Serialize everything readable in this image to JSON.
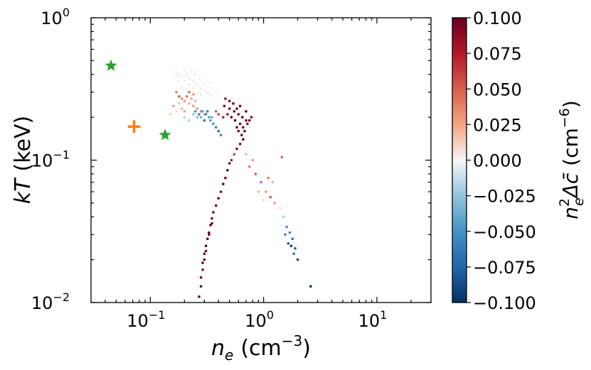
{
  "chart_data": {
    "type": "scatter",
    "xscale": "log",
    "yscale": "log",
    "xlim": [
      0.03,
      30
    ],
    "ylim": [
      0.01,
      1
    ],
    "xlabel": {
      "main": "n",
      "sub": "e",
      "unit": "(cm",
      "exp": "−3",
      "close": ")"
    },
    "ylabel": {
      "main": "kT",
      "unit": "(keV)"
    },
    "xticks": [
      {
        "value": 0.1,
        "base": "10",
        "exp": "−1"
      },
      {
        "value": 1,
        "base": "10",
        "exp": "0"
      },
      {
        "value": 10,
        "base": "10",
        "exp": "1"
      }
    ],
    "yticks": [
      {
        "value": 0.01,
        "base": "10",
        "exp": "−2"
      },
      {
        "value": 0.1,
        "base": "10",
        "exp": "−1"
      },
      {
        "value": 1,
        "base": "10",
        "exp": "0"
      }
    ],
    "colorbar": {
      "min": -0.1,
      "max": 0.1,
      "ticks": [
        "0.100",
        "0.075",
        "0.050",
        "0.025",
        "0.000",
        "−0.025",
        "−0.050",
        "−0.075",
        "−0.100"
      ],
      "label": {
        "main": "n",
        "sup": "2",
        "sub": "e",
        "sym": "Δc̄",
        "unit": "(cm",
        "exp": "−6",
        "close": ")"
      },
      "colormap": "RdBu_r"
    },
    "markers": [
      {
        "name": "star-1",
        "shape": "star",
        "color": "#2ca02c",
        "x": 0.045,
        "y": 0.46
      },
      {
        "name": "star-2",
        "shape": "star",
        "color": "#2ca02c",
        "x": 0.135,
        "y": 0.15
      },
      {
        "name": "plus-1",
        "shape": "plus",
        "color": "#ff7f0e",
        "x": 0.072,
        "y": 0.172
      }
    ],
    "series": [
      {
        "name": "hot-halo-cloud (near zero / mixed)",
        "points": [
          [
            0.16,
            0.42,
            0.0
          ],
          [
            0.17,
            0.4,
            0.005
          ],
          [
            0.18,
            0.39,
            -0.005
          ],
          [
            0.19,
            0.41,
            0.0
          ],
          [
            0.2,
            0.43,
            0.004
          ],
          [
            0.21,
            0.4,
            -0.004
          ],
          [
            0.22,
            0.38,
            0.003
          ],
          [
            0.23,
            0.37,
            0.0
          ],
          [
            0.24,
            0.36,
            -0.006
          ],
          [
            0.25,
            0.35,
            0.002
          ],
          [
            0.26,
            0.34,
            -0.003
          ],
          [
            0.27,
            0.33,
            0.0
          ],
          [
            0.28,
            0.32,
            0.005
          ],
          [
            0.3,
            0.31,
            -0.004
          ],
          [
            0.32,
            0.3,
            0.003
          ],
          [
            0.34,
            0.29,
            -0.002
          ],
          [
            0.36,
            0.28,
            0.0
          ],
          [
            0.2,
            0.36,
            0.006
          ],
          [
            0.22,
            0.34,
            -0.007
          ],
          [
            0.24,
            0.32,
            0.004
          ],
          [
            0.26,
            0.3,
            0.0
          ],
          [
            0.28,
            0.29,
            -0.005
          ],
          [
            0.19,
            0.33,
            0.003
          ],
          [
            0.21,
            0.31,
            -0.002
          ],
          [
            0.17,
            0.35,
            0.0
          ],
          [
            0.23,
            0.42,
            0.002
          ],
          [
            0.25,
            0.4,
            -0.003
          ],
          [
            0.27,
            0.37,
            0.001
          ],
          [
            0.29,
            0.35,
            -0.002
          ],
          [
            0.31,
            0.33,
            0.0
          ],
          [
            0.18,
            0.36,
            -0.004
          ],
          [
            0.2,
            0.39,
            0.002
          ],
          [
            0.16,
            0.38,
            0.0
          ],
          [
            0.22,
            0.44,
            -0.002
          ],
          [
            0.26,
            0.42,
            0.001
          ],
          [
            0.3,
            0.38,
            0.0
          ],
          [
            0.33,
            0.35,
            -0.003
          ],
          [
            0.35,
            0.32,
            0.002
          ],
          [
            0.38,
            0.3,
            -0.001
          ],
          [
            0.4,
            0.29,
            0.0
          ]
        ]
      },
      {
        "name": "warm-positive-band",
        "points": [
          [
            0.17,
            0.3,
            0.04
          ],
          [
            0.18,
            0.28,
            0.05
          ],
          [
            0.19,
            0.27,
            0.035
          ],
          [
            0.2,
            0.26,
            0.03
          ],
          [
            0.21,
            0.28,
            0.045
          ],
          [
            0.22,
            0.25,
            0.02
          ],
          [
            0.23,
            0.27,
            0.025
          ],
          [
            0.24,
            0.24,
            0.03
          ],
          [
            0.18,
            0.25,
            0.015
          ],
          [
            0.19,
            0.23,
            0.02
          ],
          [
            0.2,
            0.22,
            0.025
          ],
          [
            0.17,
            0.22,
            0.01
          ],
          [
            0.16,
            0.24,
            0.03
          ],
          [
            0.15,
            0.21,
            0.015
          ],
          [
            0.26,
            0.23,
            0.035
          ],
          [
            0.28,
            0.22,
            0.04
          ],
          [
            0.3,
            0.21,
            0.03
          ],
          [
            0.25,
            0.26,
            0.02
          ],
          [
            0.22,
            0.3,
            0.045
          ],
          [
            0.24,
            0.29,
            0.03
          ]
        ]
      },
      {
        "name": "cool-negative-pocket",
        "points": [
          [
            0.25,
            0.22,
            -0.05
          ],
          [
            0.27,
            0.21,
            -0.06
          ],
          [
            0.29,
            0.22,
            -0.04
          ],
          [
            0.31,
            0.21,
            -0.055
          ],
          [
            0.33,
            0.2,
            -0.045
          ],
          [
            0.3,
            0.19,
            -0.07
          ],
          [
            0.28,
            0.2,
            -0.035
          ],
          [
            0.32,
            0.22,
            -0.06
          ],
          [
            0.35,
            0.2,
            -0.04
          ],
          [
            0.26,
            0.2,
            -0.03
          ],
          [
            0.24,
            0.21,
            -0.025
          ],
          [
            0.36,
            0.18,
            -0.05
          ],
          [
            0.38,
            0.17,
            -0.06
          ],
          [
            0.4,
            0.16,
            -0.07
          ],
          [
            0.34,
            0.19,
            -0.045
          ],
          [
            0.22,
            0.19,
            -0.02
          ],
          [
            0.2,
            0.2,
            -0.015
          ],
          [
            0.42,
            0.15,
            -0.055
          ]
        ]
      },
      {
        "name": "dense-hot-core",
        "points": [
          [
            0.45,
            0.24,
            0.1
          ],
          [
            0.5,
            0.23,
            0.1
          ],
          [
            0.55,
            0.22,
            0.1
          ],
          [
            0.6,
            0.21,
            0.095
          ],
          [
            0.65,
            0.2,
            0.1
          ],
          [
            0.7,
            0.19,
            0.1
          ],
          [
            0.62,
            0.18,
            0.1
          ],
          [
            0.58,
            0.17,
            0.1
          ],
          [
            0.66,
            0.17,
            0.1
          ],
          [
            0.72,
            0.18,
            0.09
          ],
          [
            0.48,
            0.21,
            0.085
          ],
          [
            0.52,
            0.2,
            0.1
          ],
          [
            0.56,
            0.19,
            0.1
          ],
          [
            0.6,
            0.16,
            0.1
          ],
          [
            0.64,
            0.15,
            0.1
          ],
          [
            0.68,
            0.16,
            0.1
          ],
          [
            0.75,
            0.19,
            0.1
          ],
          [
            0.78,
            0.2,
            0.095
          ],
          [
            0.7,
            0.22,
            0.1
          ],
          [
            0.54,
            0.25,
            0.1
          ],
          [
            0.44,
            0.2,
            0.07
          ],
          [
            0.4,
            0.21,
            0.06
          ],
          [
            0.38,
            0.22,
            0.05
          ],
          [
            0.58,
            0.23,
            0.1
          ],
          [
            0.62,
            0.24,
            0.1
          ],
          [
            0.5,
            0.26,
            0.1
          ],
          [
            0.46,
            0.27,
            0.09
          ],
          [
            0.66,
            0.14,
            0.1
          ],
          [
            0.62,
            0.13,
            0.095
          ],
          [
            0.58,
            0.12,
            0.09
          ]
        ]
      },
      {
        "name": "cooling-tail",
        "points": [
          [
            0.55,
            0.11,
            0.06
          ],
          [
            0.52,
            0.1,
            0.08
          ],
          [
            0.5,
            0.095,
            0.1
          ],
          [
            0.48,
            0.085,
            0.1
          ],
          [
            0.46,
            0.075,
            0.1
          ],
          [
            0.44,
            0.068,
            0.1
          ],
          [
            0.42,
            0.06,
            0.1
          ],
          [
            0.4,
            0.054,
            0.1
          ],
          [
            0.38,
            0.048,
            0.1
          ],
          [
            0.36,
            0.043,
            0.1
          ],
          [
            0.35,
            0.039,
            0.1
          ],
          [
            0.34,
            0.035,
            0.1
          ],
          [
            0.33,
            0.031,
            0.1
          ],
          [
            0.32,
            0.028,
            0.1
          ],
          [
            0.31,
            0.025,
            0.1
          ],
          [
            0.3,
            0.022,
            0.1
          ],
          [
            0.29,
            0.019,
            0.1
          ],
          [
            0.29,
            0.017,
            0.1
          ],
          [
            0.28,
            0.015,
            0.1
          ],
          [
            0.28,
            0.013,
            0.1
          ],
          [
            0.27,
            0.011,
            0.1
          ],
          [
            0.3,
            0.02,
            0.1
          ],
          [
            0.31,
            0.023,
            0.1
          ],
          [
            0.33,
            0.03,
            0.1
          ],
          [
            0.35,
            0.036,
            0.1
          ]
        ]
      },
      {
        "name": "dense-scatter-tail",
        "points": [
          [
            0.75,
            0.09,
            0.04
          ],
          [
            0.85,
            0.08,
            0.05
          ],
          [
            0.95,
            0.07,
            0.045
          ],
          [
            1.05,
            0.06,
            0.03
          ],
          [
            1.15,
            0.055,
            0.05
          ],
          [
            1.25,
            0.05,
            0.03
          ],
          [
            0.9,
            0.06,
            0.02
          ],
          [
            1.0,
            0.052,
            0.01
          ],
          [
            1.4,
            0.046,
            0.01
          ],
          [
            1.5,
            0.04,
            -0.02
          ],
          [
            1.6,
            0.034,
            -0.05
          ],
          [
            1.7,
            0.031,
            -0.06
          ],
          [
            1.8,
            0.028,
            -0.07
          ],
          [
            1.9,
            0.024,
            -0.08
          ],
          [
            2.0,
            0.02,
            -0.09
          ],
          [
            1.55,
            0.03,
            -0.06
          ],
          [
            1.65,
            0.026,
            -0.08
          ],
          [
            1.75,
            0.025,
            -0.09
          ],
          [
            1.85,
            0.022,
            -0.07
          ],
          [
            2.6,
            0.013,
            -0.1
          ],
          [
            1.45,
            0.105,
            0.05
          ],
          [
            1.2,
            0.07,
            0.02
          ],
          [
            1.1,
            0.075,
            0.04
          ],
          [
            0.8,
            0.1,
            0.03
          ],
          [
            0.7,
            0.11,
            0.02
          ]
        ]
      }
    ]
  }
}
